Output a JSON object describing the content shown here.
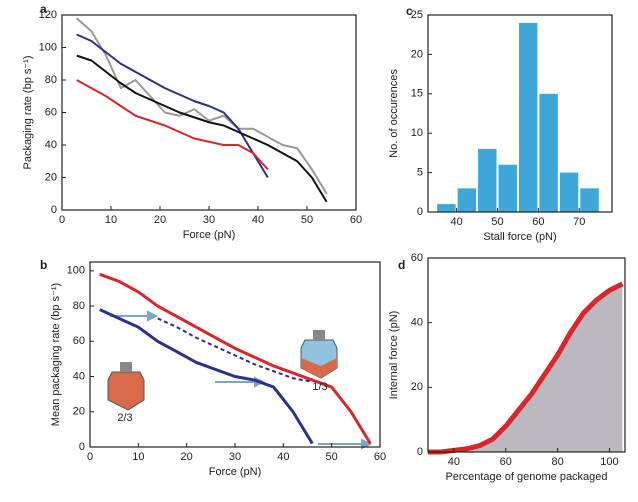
{
  "chart_data": [
    {
      "type": "line",
      "panel_label": "a",
      "x_label": "Force (pN)",
      "y_label": "Packaging rate (bp s⁻¹)",
      "x": [
        3,
        6,
        9,
        12,
        15,
        18,
        21,
        24,
        27,
        30,
        33,
        36,
        39,
        42,
        45,
        48,
        51,
        54
      ],
      "series": [
        {
          "color": "#9a9a9a",
          "width": 2,
          "values": [
            118,
            110,
            95,
            75,
            80,
            70,
            60,
            58,
            62,
            55,
            58,
            50,
            50,
            45,
            40,
            38,
            25,
            10
          ]
        },
        {
          "color": "#2b2f8f",
          "width": 2,
          "values": [
            108,
            104,
            97,
            90,
            85,
            80,
            75,
            71,
            67,
            64,
            60,
            50,
            35,
            20,
            null,
            null,
            null,
            null
          ]
        },
        {
          "color": "#111111",
          "width": 2,
          "values": [
            95,
            92,
            85,
            78,
            72,
            68,
            64,
            60,
            57,
            54,
            52,
            48,
            44,
            40,
            35,
            30,
            20,
            5
          ]
        },
        {
          "color": "#d8262a",
          "width": 2,
          "values": [
            80,
            75,
            70,
            64,
            58,
            55,
            52,
            48,
            44,
            42,
            40,
            40,
            35,
            25,
            null,
            null,
            null,
            null
          ]
        }
      ],
      "xlim": [
        0,
        60
      ],
      "xticks": [
        0,
        10,
        20,
        30,
        40,
        50,
        60
      ],
      "ylim": [
        0,
        120
      ],
      "yticks": [
        0,
        20,
        40,
        60,
        80,
        100,
        120
      ]
    },
    {
      "type": "histogram",
      "panel_label": "c",
      "x_label": "Stall force (pN)",
      "y_label": "No. of occurences",
      "bins": [
        35,
        40,
        45,
        50,
        55,
        60,
        65,
        70,
        75
      ],
      "values": [
        1,
        3,
        8,
        6,
        24,
        15,
        5,
        3
      ],
      "color": "#3ea7d8",
      "xlim": [
        33,
        78
      ],
      "xticks": [
        40,
        50,
        60,
        70
      ],
      "ylim": [
        0,
        25
      ],
      "yticks": [
        0,
        5,
        10,
        15,
        20,
        25
      ]
    },
    {
      "type": "line",
      "panel_label": "b",
      "x_label": "Force (pN)",
      "y_label": "Mean packaging rate (bp s⁻¹)",
      "annotations": [
        "2/3",
        "1/3"
      ],
      "x": [
        2,
        6,
        10,
        14,
        18,
        22,
        26,
        30,
        34,
        38,
        42,
        46,
        50,
        54,
        58
      ],
      "series": [
        {
          "color": "#d8262a",
          "width": 3,
          "values": [
            98,
            94,
            88,
            80,
            74,
            68,
            62,
            56,
            51,
            46,
            42,
            38,
            34,
            20,
            2
          ]
        },
        {
          "color": "#2b2f8f",
          "width": 3,
          "values": [
            78,
            73,
            68,
            60,
            54,
            48,
            44,
            40,
            38,
            34,
            20,
            2,
            null,
            null,
            null
          ]
        },
        {
          "color": "#2b2f8f",
          "width": 2,
          "dashed": true,
          "values": [
            null,
            null,
            null,
            73,
            68,
            62,
            57,
            52,
            47,
            43,
            39,
            37,
            null,
            null,
            null
          ]
        }
      ],
      "xlim": [
        0,
        60
      ],
      "xticks": [
        0,
        10,
        20,
        30,
        40,
        50,
        60
      ],
      "ylim": [
        0,
        105
      ],
      "yticks": [
        0,
        20,
        40,
        60,
        80,
        100
      ]
    },
    {
      "type": "area",
      "panel_label": "d",
      "x_label": "Percentage of genome packaged",
      "y_label": "Internal force (pN)",
      "x": [
        30,
        35,
        40,
        45,
        50,
        55,
        60,
        65,
        70,
        75,
        80,
        85,
        90,
        95,
        100,
        105
      ],
      "values": [
        0,
        0,
        0.5,
        1,
        2,
        4,
        8,
        13,
        18,
        24,
        30,
        37,
        43,
        47,
        50,
        52
      ],
      "color": "#d8262a",
      "fill": "#bdb8c0",
      "xlim": [
        30,
        106
      ],
      "xticks": [
        40,
        60,
        80,
        100
      ],
      "ylim": [
        0,
        60
      ],
      "yticks": [
        0,
        20,
        40,
        60
      ]
    }
  ]
}
